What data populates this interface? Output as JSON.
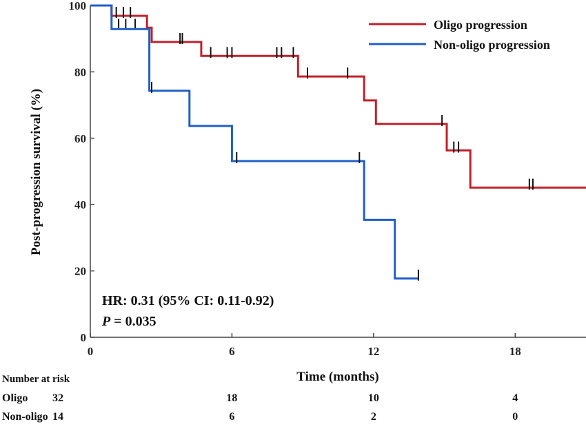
{
  "chart_data": {
    "type": "line",
    "step": true,
    "xlabel": "Time (months)",
    "ylabel": "Post-progression survival (%)",
    "xlim": [
      0,
      21
    ],
    "ylim": [
      0,
      100
    ],
    "xticks": [
      0,
      6,
      12,
      18
    ],
    "yticks": [
      0,
      20,
      40,
      60,
      80,
      100
    ],
    "grid": false,
    "legend_position": "top-right",
    "series": [
      {
        "name": "Oligo progression",
        "color": "#c0202a",
        "steps": [
          [
            0,
            100
          ],
          [
            0.9,
            96.9
          ],
          [
            2.4,
            93.3
          ],
          [
            2.6,
            89
          ],
          [
            4.7,
            84.8
          ],
          [
            8.8,
            78.6
          ],
          [
            11.6,
            71.4
          ],
          [
            12.1,
            64.3
          ],
          [
            15.1,
            56.3
          ],
          [
            16.1,
            45.1
          ],
          [
            21,
            45.1
          ]
        ],
        "censors": [
          [
            1.1,
            96.9
          ],
          [
            1.4,
            96.9
          ],
          [
            1.7,
            96.9
          ],
          [
            1.2,
            93.3
          ],
          [
            1.5,
            93.3
          ],
          [
            1.9,
            93.3
          ],
          [
            3.8,
            89
          ],
          [
            3.9,
            89
          ],
          [
            5.1,
            84.8
          ],
          [
            5.8,
            84.8
          ],
          [
            6.0,
            84.8
          ],
          [
            7.9,
            84.8
          ],
          [
            8.1,
            84.8
          ],
          [
            8.6,
            84.8
          ],
          [
            9.2,
            78.6
          ],
          [
            10.9,
            78.6
          ],
          [
            14.9,
            64.3
          ],
          [
            15.4,
            56.3
          ],
          [
            15.6,
            56.3
          ],
          [
            18.6,
            45.1
          ],
          [
            18.75,
            45.1
          ]
        ]
      },
      {
        "name": "Non-oligo progression",
        "color": "#1f5fc8",
        "steps": [
          [
            0,
            100
          ],
          [
            0.9,
            92.9
          ],
          [
            2.5,
            74.3
          ],
          [
            4.2,
            63.7
          ],
          [
            6.0,
            53.1
          ],
          [
            11.6,
            35.4
          ],
          [
            12.9,
            17.7
          ],
          [
            13.9,
            17.7
          ]
        ],
        "censors": [
          [
            2.6,
            74.3
          ],
          [
            6.2,
            53.1
          ],
          [
            11.4,
            53.1
          ],
          [
            13.9,
            17.7
          ]
        ]
      }
    ],
    "annotations": {
      "hr": "HR: 0.31 (95% CI: 0.11-0.92)",
      "p_prefix": "P",
      "p_value": " = 0.035"
    },
    "risk_table": {
      "title": "Number  at risk",
      "rows": [
        {
          "label": "Oligo",
          "first": "32",
          "values": [
            "18",
            "10",
            "4"
          ]
        },
        {
          "label": "Non-oligo",
          "first": "14",
          "values": [
            "6",
            "2",
            "0"
          ]
        }
      ]
    }
  }
}
